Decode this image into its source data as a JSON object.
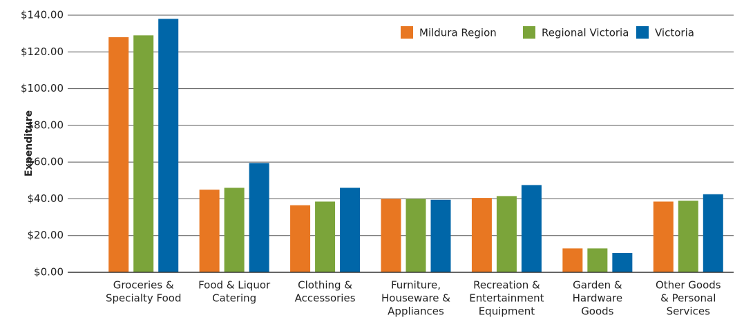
{
  "chart_data": {
    "type": "bar",
    "ylabel": "Expenditure",
    "categories": [
      [
        "Groceries &",
        "Specialty Food"
      ],
      [
        "Food & Liquor",
        "Catering"
      ],
      [
        "Clothing &",
        "Accessories"
      ],
      [
        "Furniture,",
        "Houseware &",
        "Appliances"
      ],
      [
        "Recreation &",
        "Entertainment",
        "Equipment"
      ],
      [
        "Garden &",
        "Hardware",
        "Goods"
      ],
      [
        "Other Goods",
        "& Personal",
        "Services"
      ]
    ],
    "series": [
      {
        "name": "Mildura Region",
        "color": "#e87722",
        "values": [
          128,
          45,
          36.5,
          40,
          40.5,
          13,
          38.5
        ]
      },
      {
        "name": "Regional Victoria",
        "color": "#7ba43a",
        "values": [
          129,
          46,
          38.5,
          40,
          41.5,
          13,
          39
        ]
      },
      {
        "name": "Victoria",
        "color": "#0066a8",
        "values": [
          138,
          59.5,
          46,
          39.5,
          47.5,
          10.5,
          42.5
        ]
      }
    ],
    "ylim": [
      0,
      140
    ],
    "yticks": [
      {
        "value": 0,
        "label": "$0.00"
      },
      {
        "value": 20,
        "label": "$20.00"
      },
      {
        "value": 40,
        "label": "$40.00"
      },
      {
        "value": 60,
        "label": "$60.00"
      },
      {
        "value": 80,
        "label": "$80.00"
      },
      {
        "value": 100,
        "label": "$100.00"
      },
      {
        "value": 120,
        "label": "$120.00"
      },
      {
        "value": 140,
        "label": "$140.00"
      }
    ],
    "grid": true,
    "legend": "top-right"
  }
}
